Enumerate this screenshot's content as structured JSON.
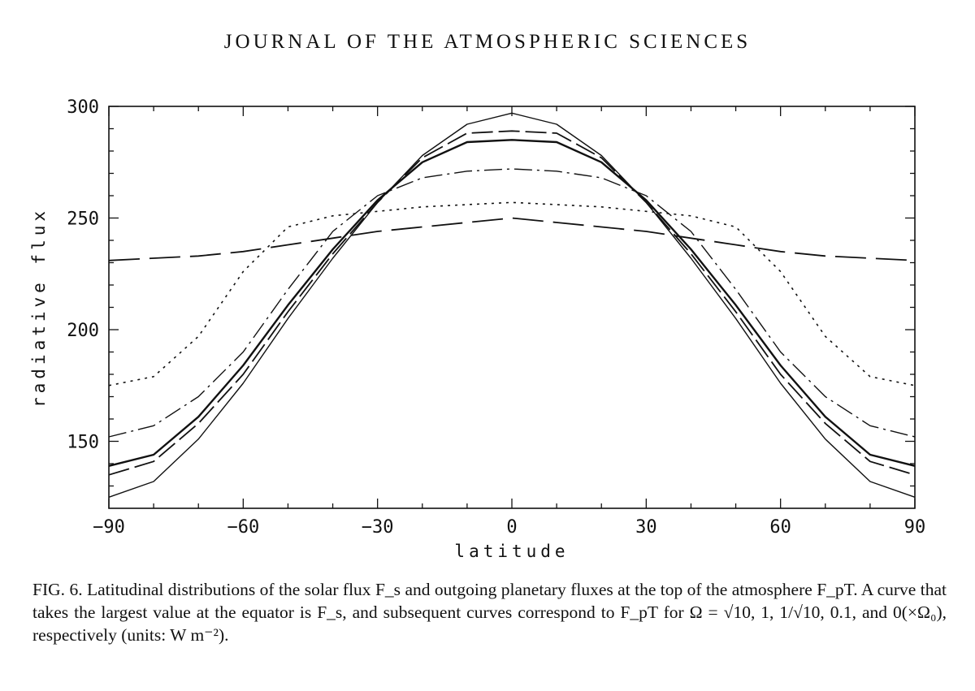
{
  "page": {
    "journal_header": "JOURNAL OF THE ATMOSPHERIC SCIENCES"
  },
  "caption": {
    "fig_label": "FIG. 6.",
    "text": "Latitudinal distributions of the solar flux F_s and outgoing planetary fluxes at the top of the atmosphere F_pT. A curve that takes the largest value at the equator is F_s, and subsequent curves correspond to F_pT for Ω = √10, 1, 1/√10, 0.1, and 0(×Ω₀), respectively (units: W m⁻²)."
  },
  "chart_data": {
    "type": "line",
    "title": "",
    "xlabel": "latitude",
    "ylabel": "radiative flux",
    "xlim": [
      -90,
      90
    ],
    "ylim": [
      120,
      300
    ],
    "xticks": [
      -90,
      -60,
      -30,
      0,
      30,
      60,
      90
    ],
    "yticks": [
      150,
      200,
      250,
      300
    ],
    "x": [
      -90,
      -80,
      -70,
      -60,
      -50,
      -40,
      -30,
      -20,
      -10,
      0,
      10,
      20,
      30,
      40,
      50,
      60,
      70,
      80,
      90
    ],
    "series": [
      {
        "name": "F_s",
        "style": "solid-thin",
        "values": [
          125,
          132,
          151,
          176,
          205,
          232,
          257,
          278,
          292,
          297,
          292,
          278,
          257,
          232,
          205,
          176,
          151,
          132,
          125
        ]
      },
      {
        "name": "F_pT Ω=√10",
        "style": "long-dash",
        "values": [
          135,
          141,
          158,
          180,
          208,
          234,
          257,
          277,
          288,
          289,
          288,
          277,
          257,
          234,
          208,
          180,
          158,
          141,
          135
        ]
      },
      {
        "name": "F_pT Ω=1",
        "style": "solid-thick",
        "values": [
          139,
          144,
          161,
          184,
          211,
          236,
          258,
          275,
          284,
          285,
          284,
          275,
          258,
          236,
          211,
          184,
          161,
          144,
          139
        ]
      },
      {
        "name": "F_pT Ω=1/√10",
        "style": "dash-dot",
        "values": [
          152,
          157,
          170,
          190,
          218,
          244,
          260,
          268,
          271,
          272,
          271,
          268,
          260,
          244,
          218,
          190,
          170,
          157,
          152
        ]
      },
      {
        "name": "F_pT Ω=0.1",
        "style": "dotted",
        "values": [
          175,
          179,
          197,
          226,
          246,
          251,
          253,
          255,
          256,
          257,
          256,
          255,
          253,
          251,
          246,
          226,
          197,
          179,
          175
        ]
      },
      {
        "name": "F_pT Ω=0",
        "style": "wide-dash",
        "values": [
          231,
          232,
          233,
          235,
          238,
          241,
          244,
          246,
          248,
          250,
          248,
          246,
          244,
          241,
          238,
          235,
          233,
          232,
          231
        ]
      }
    ],
    "grid": false,
    "legend": "none"
  }
}
